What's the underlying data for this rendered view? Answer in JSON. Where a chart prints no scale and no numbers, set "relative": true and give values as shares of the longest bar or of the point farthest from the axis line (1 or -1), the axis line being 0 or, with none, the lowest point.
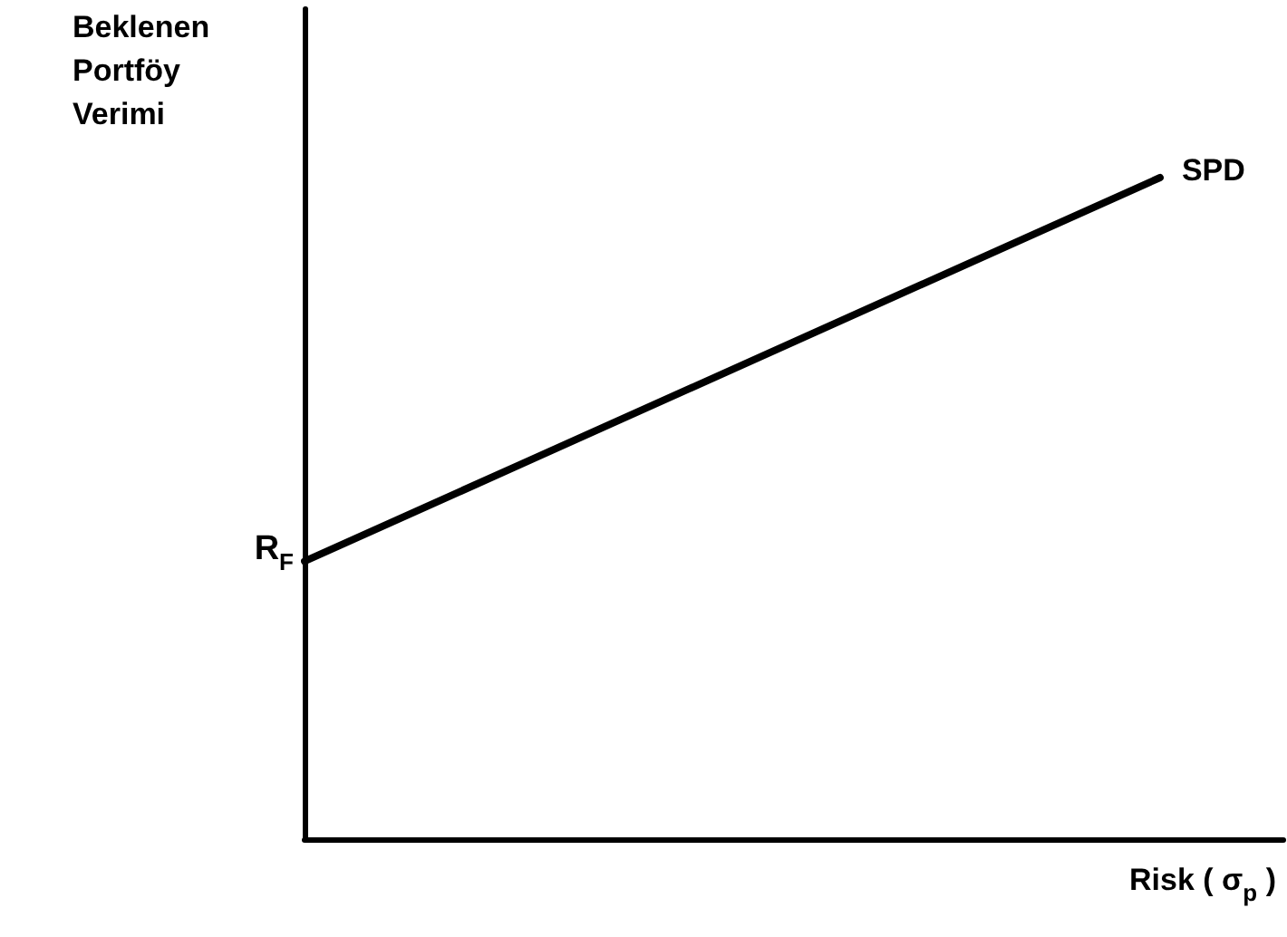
{
  "chart_data": {
    "type": "line",
    "relative": true,
    "ylabel": "Beklenen\nPortföy\nVerimi",
    "xlabel": "Risk ( σ$_{p}$ )",
    "categories": [
      null,
      null
    ],
    "series": [
      {
        "name": "SPD",
        "color": "#000000",
        "values": [
          0.42,
          1
        ]
      }
    ],
    "annotations": [
      "R$_{F}$"
    ],
    "grid": false,
    "legend": false,
    "marker": "none",
    "line_style": "solid"
  }
}
